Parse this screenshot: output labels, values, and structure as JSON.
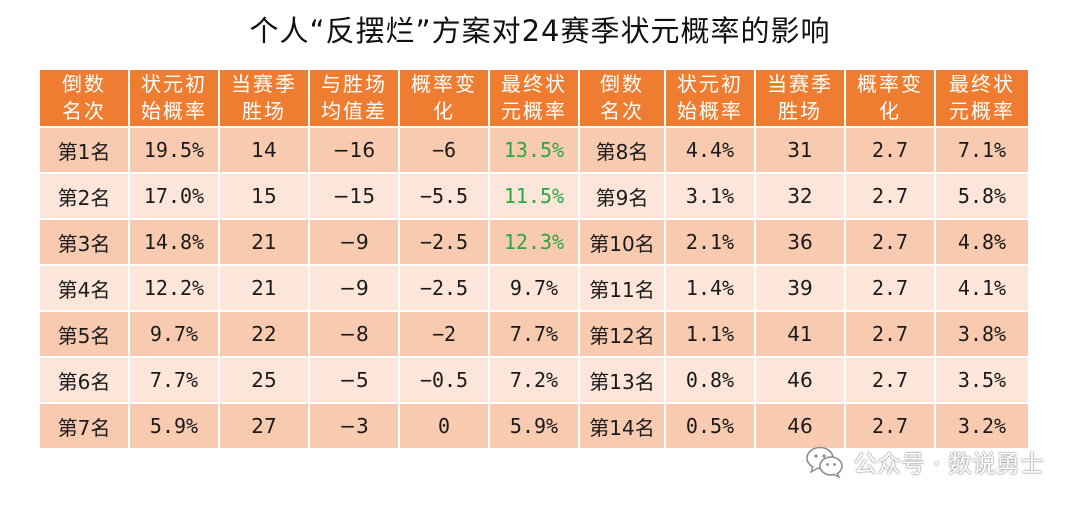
{
  "title": "个人“反摆烂”方案对24赛季状元概率的影响",
  "headers": [
    [
      "倒数",
      "名次"
    ],
    [
      "状元初",
      "始概率"
    ],
    [
      "当赛季",
      "胜场"
    ],
    [
      "与胜场",
      "均值差"
    ],
    [
      "概率变",
      "化"
    ],
    [
      "最终状",
      "元概率"
    ],
    [
      "倒数",
      "名次"
    ],
    [
      "状元初",
      "始概率"
    ],
    [
      "当赛季",
      "胜场"
    ],
    [
      "概率变",
      "化"
    ],
    [
      "最终状",
      "元概率"
    ]
  ],
  "rows": [
    [
      "第1名",
      "19.5%",
      "14",
      "−16",
      "−6",
      "13.5%",
      "第8名",
      "4.4%",
      "31",
      "2.7",
      "7.1%"
    ],
    [
      "第2名",
      "17.0%",
      "15",
      "−15",
      "−5.5",
      "11.5%",
      "第9名",
      "3.1%",
      "32",
      "2.7",
      "5.8%"
    ],
    [
      "第3名",
      "14.8%",
      "21",
      "−9",
      "−2.5",
      "12.3%",
      "第10名",
      "2.1%",
      "36",
      "2.7",
      "4.8%"
    ],
    [
      "第4名",
      "12.2%",
      "21",
      "−9",
      "−2.5",
      "9.7%",
      "第11名",
      "1.4%",
      "39",
      "2.7",
      "4.1%"
    ],
    [
      "第5名",
      "9.7%",
      "22",
      "−8",
      "−2",
      "7.7%",
      "第12名",
      "1.1%",
      "41",
      "2.7",
      "3.8%"
    ],
    [
      "第6名",
      "7.7%",
      "25",
      "−5",
      "−0.5",
      "7.2%",
      "第13名",
      "0.8%",
      "46",
      "2.7",
      "3.5%"
    ],
    [
      "第7名",
      "5.9%",
      "27",
      "−3",
      "0",
      "5.9%",
      "第14名",
      "0.5%",
      "46",
      "2.7",
      "3.2%"
    ]
  ],
  "highlight_color": "#2aa743",
  "header_color": "#ef7d31",
  "row_colors": [
    "#f8cbb1",
    "#fce6da"
  ],
  "watermark": {
    "icon": "wechat-icon",
    "text": "公众号 · 数说勇士"
  }
}
